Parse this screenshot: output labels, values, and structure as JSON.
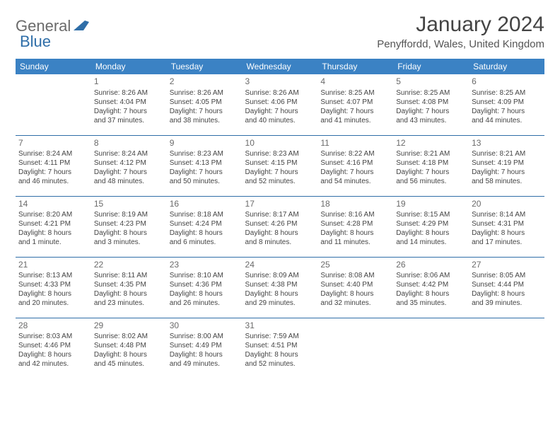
{
  "logo": {
    "general": "General",
    "blue": "Blue"
  },
  "title": "January 2024",
  "location": "Penyffordd, Wales, United Kingdom",
  "colors": {
    "header_bg": "#3b82c4",
    "header_text": "#ffffff",
    "row_divider": "#2f6ea8",
    "day_num": "#6a6a6a",
    "body_text": "#444444",
    "logo_gray": "#6a6a6a",
    "logo_blue": "#2f6ea8"
  },
  "day_headers": [
    "Sunday",
    "Monday",
    "Tuesday",
    "Wednesday",
    "Thursday",
    "Friday",
    "Saturday"
  ],
  "weeks": [
    [
      null,
      {
        "n": "1",
        "sr": "Sunrise: 8:26 AM",
        "ss": "Sunset: 4:04 PM",
        "d1": "Daylight: 7 hours",
        "d2": "and 37 minutes."
      },
      {
        "n": "2",
        "sr": "Sunrise: 8:26 AM",
        "ss": "Sunset: 4:05 PM",
        "d1": "Daylight: 7 hours",
        "d2": "and 38 minutes."
      },
      {
        "n": "3",
        "sr": "Sunrise: 8:26 AM",
        "ss": "Sunset: 4:06 PM",
        "d1": "Daylight: 7 hours",
        "d2": "and 40 minutes."
      },
      {
        "n": "4",
        "sr": "Sunrise: 8:25 AM",
        "ss": "Sunset: 4:07 PM",
        "d1": "Daylight: 7 hours",
        "d2": "and 41 minutes."
      },
      {
        "n": "5",
        "sr": "Sunrise: 8:25 AM",
        "ss": "Sunset: 4:08 PM",
        "d1": "Daylight: 7 hours",
        "d2": "and 43 minutes."
      },
      {
        "n": "6",
        "sr": "Sunrise: 8:25 AM",
        "ss": "Sunset: 4:09 PM",
        "d1": "Daylight: 7 hours",
        "d2": "and 44 minutes."
      }
    ],
    [
      {
        "n": "7",
        "sr": "Sunrise: 8:24 AM",
        "ss": "Sunset: 4:11 PM",
        "d1": "Daylight: 7 hours",
        "d2": "and 46 minutes."
      },
      {
        "n": "8",
        "sr": "Sunrise: 8:24 AM",
        "ss": "Sunset: 4:12 PM",
        "d1": "Daylight: 7 hours",
        "d2": "and 48 minutes."
      },
      {
        "n": "9",
        "sr": "Sunrise: 8:23 AM",
        "ss": "Sunset: 4:13 PM",
        "d1": "Daylight: 7 hours",
        "d2": "and 50 minutes."
      },
      {
        "n": "10",
        "sr": "Sunrise: 8:23 AM",
        "ss": "Sunset: 4:15 PM",
        "d1": "Daylight: 7 hours",
        "d2": "and 52 minutes."
      },
      {
        "n": "11",
        "sr": "Sunrise: 8:22 AM",
        "ss": "Sunset: 4:16 PM",
        "d1": "Daylight: 7 hours",
        "d2": "and 54 minutes."
      },
      {
        "n": "12",
        "sr": "Sunrise: 8:21 AM",
        "ss": "Sunset: 4:18 PM",
        "d1": "Daylight: 7 hours",
        "d2": "and 56 minutes."
      },
      {
        "n": "13",
        "sr": "Sunrise: 8:21 AM",
        "ss": "Sunset: 4:19 PM",
        "d1": "Daylight: 7 hours",
        "d2": "and 58 minutes."
      }
    ],
    [
      {
        "n": "14",
        "sr": "Sunrise: 8:20 AM",
        "ss": "Sunset: 4:21 PM",
        "d1": "Daylight: 8 hours",
        "d2": "and 1 minute."
      },
      {
        "n": "15",
        "sr": "Sunrise: 8:19 AM",
        "ss": "Sunset: 4:23 PM",
        "d1": "Daylight: 8 hours",
        "d2": "and 3 minutes."
      },
      {
        "n": "16",
        "sr": "Sunrise: 8:18 AM",
        "ss": "Sunset: 4:24 PM",
        "d1": "Daylight: 8 hours",
        "d2": "and 6 minutes."
      },
      {
        "n": "17",
        "sr": "Sunrise: 8:17 AM",
        "ss": "Sunset: 4:26 PM",
        "d1": "Daylight: 8 hours",
        "d2": "and 8 minutes."
      },
      {
        "n": "18",
        "sr": "Sunrise: 8:16 AM",
        "ss": "Sunset: 4:28 PM",
        "d1": "Daylight: 8 hours",
        "d2": "and 11 minutes."
      },
      {
        "n": "19",
        "sr": "Sunrise: 8:15 AM",
        "ss": "Sunset: 4:29 PM",
        "d1": "Daylight: 8 hours",
        "d2": "and 14 minutes."
      },
      {
        "n": "20",
        "sr": "Sunrise: 8:14 AM",
        "ss": "Sunset: 4:31 PM",
        "d1": "Daylight: 8 hours",
        "d2": "and 17 minutes."
      }
    ],
    [
      {
        "n": "21",
        "sr": "Sunrise: 8:13 AM",
        "ss": "Sunset: 4:33 PM",
        "d1": "Daylight: 8 hours",
        "d2": "and 20 minutes."
      },
      {
        "n": "22",
        "sr": "Sunrise: 8:11 AM",
        "ss": "Sunset: 4:35 PM",
        "d1": "Daylight: 8 hours",
        "d2": "and 23 minutes."
      },
      {
        "n": "23",
        "sr": "Sunrise: 8:10 AM",
        "ss": "Sunset: 4:36 PM",
        "d1": "Daylight: 8 hours",
        "d2": "and 26 minutes."
      },
      {
        "n": "24",
        "sr": "Sunrise: 8:09 AM",
        "ss": "Sunset: 4:38 PM",
        "d1": "Daylight: 8 hours",
        "d2": "and 29 minutes."
      },
      {
        "n": "25",
        "sr": "Sunrise: 8:08 AM",
        "ss": "Sunset: 4:40 PM",
        "d1": "Daylight: 8 hours",
        "d2": "and 32 minutes."
      },
      {
        "n": "26",
        "sr": "Sunrise: 8:06 AM",
        "ss": "Sunset: 4:42 PM",
        "d1": "Daylight: 8 hours",
        "d2": "and 35 minutes."
      },
      {
        "n": "27",
        "sr": "Sunrise: 8:05 AM",
        "ss": "Sunset: 4:44 PM",
        "d1": "Daylight: 8 hours",
        "d2": "and 39 minutes."
      }
    ],
    [
      {
        "n": "28",
        "sr": "Sunrise: 8:03 AM",
        "ss": "Sunset: 4:46 PM",
        "d1": "Daylight: 8 hours",
        "d2": "and 42 minutes."
      },
      {
        "n": "29",
        "sr": "Sunrise: 8:02 AM",
        "ss": "Sunset: 4:48 PM",
        "d1": "Daylight: 8 hours",
        "d2": "and 45 minutes."
      },
      {
        "n": "30",
        "sr": "Sunrise: 8:00 AM",
        "ss": "Sunset: 4:49 PM",
        "d1": "Daylight: 8 hours",
        "d2": "and 49 minutes."
      },
      {
        "n": "31",
        "sr": "Sunrise: 7:59 AM",
        "ss": "Sunset: 4:51 PM",
        "d1": "Daylight: 8 hours",
        "d2": "and 52 minutes."
      },
      null,
      null,
      null
    ]
  ]
}
